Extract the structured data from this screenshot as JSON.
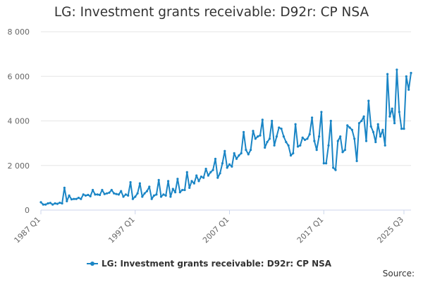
{
  "chart_data": {
    "type": "line",
    "title": "LG: Investment grants receivable: D92r: CP NSA",
    "xlabel": "",
    "ylabel": "",
    "ylim": [
      0,
      8000
    ],
    "grid": true,
    "legend_position": "bottom",
    "y_ticks": [
      "0",
      "2 000",
      "4 000",
      "6 000",
      "8 000"
    ],
    "x_tick_labels": [
      "1987 Q1",
      "1997 Q1",
      "2007 Q1",
      "2017 Q1",
      "2025 Q3"
    ],
    "x_start": "1987 Q1",
    "x_end": "2025 Q3",
    "series": [
      {
        "name": "LG: Investment grants receivable: D92r: CP NSA",
        "color": "#1a85c5",
        "values": [
          350,
          250,
          250,
          300,
          320,
          250,
          300,
          280,
          330,
          300,
          1000,
          400,
          650,
          480,
          500,
          500,
          550,
          500,
          700,
          650,
          680,
          620,
          900,
          700,
          700,
          680,
          900,
          720,
          750,
          780,
          900,
          750,
          720,
          700,
          850,
          600,
          700,
          650,
          1250,
          500,
          600,
          750,
          1200,
          600,
          750,
          850,
          1050,
          500,
          650,
          700,
          1350,
          600,
          700,
          650,
          1300,
          600,
          950,
          800,
          1400,
          800,
          900,
          900,
          1700,
          1000,
          1300,
          1200,
          1550,
          1300,
          1500,
          1450,
          1850,
          1550,
          1700,
          1800,
          2300,
          1450,
          1650,
          2100,
          2650,
          1900,
          2050,
          1950,
          2550,
          2300,
          2450,
          2550,
          3500,
          2700,
          2500,
          2700,
          3550,
          3200,
          3300,
          3350,
          4050,
          2800,
          3050,
          3200,
          4000,
          2900,
          3300,
          3700,
          3650,
          3300,
          3050,
          2900,
          2450,
          2550,
          3850,
          2850,
          2900,
          3250,
          3150,
          3200,
          3400,
          4150,
          3100,
          2700,
          3300,
          4400,
          2100,
          2100,
          2900,
          4000,
          1900,
          1800,
          3100,
          3300,
          2600,
          2700,
          3800,
          3700,
          3600,
          3200,
          2200,
          3900,
          4000,
          4200,
          3100,
          4900,
          3750,
          3500,
          3050,
          3850,
          3300,
          3600,
          2900,
          6100,
          4200,
          4550,
          3900,
          6300,
          4400,
          3650,
          3650,
          6000,
          5400,
          6150
        ]
      }
    ]
  },
  "footer": {
    "source_label": "Source:"
  }
}
